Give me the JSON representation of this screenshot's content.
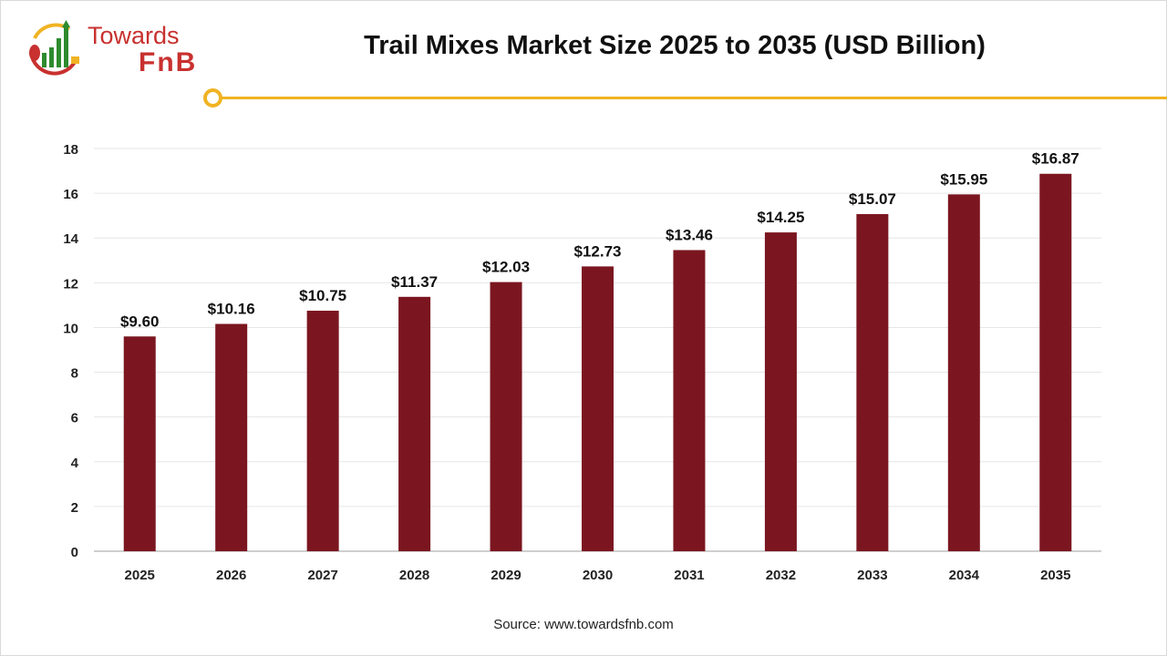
{
  "header": {
    "title": "Trail Mixes Market Size 2025 to 2035 (USD Billion)",
    "logo_text_1": "Towards",
    "logo_text_2": "FnB"
  },
  "source": "Source: www.towardsfnb.com",
  "colors": {
    "bar": "#7b1620",
    "accent": "#f0b323",
    "logo_red": "#c8312f",
    "logo_green": "#2e8b2e"
  },
  "chart_data": {
    "type": "bar",
    "title": "Trail Mixes Market Size 2025 to 2035 (USD Billion)",
    "categories": [
      "2025",
      "2026",
      "2027",
      "2028",
      "2029",
      "2030",
      "2031",
      "2032",
      "2033",
      "2034",
      "2035"
    ],
    "values": [
      9.6,
      10.16,
      10.75,
      11.37,
      12.03,
      12.73,
      13.46,
      14.25,
      15.07,
      15.95,
      16.87
    ],
    "data_labels": [
      "$9.60",
      "$10.16",
      "$10.75",
      "$11.37",
      "$12.03",
      "$12.73",
      "$13.46",
      "$14.25",
      "$15.07",
      "$15.95",
      "$16.87"
    ],
    "yticks": [
      "0",
      "2",
      "4",
      "6",
      "8",
      "10",
      "12",
      "14",
      "16",
      "18"
    ],
    "ylim": [
      0,
      18
    ],
    "grid": true,
    "legend": "none",
    "xlabel": "",
    "ylabel": ""
  }
}
